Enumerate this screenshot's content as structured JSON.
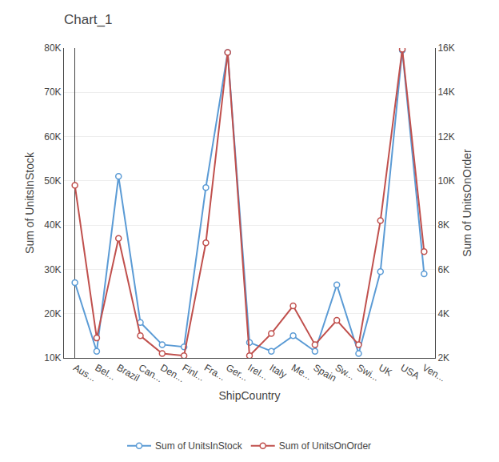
{
  "chart_data": {
    "type": "line",
    "title": "Chart_1",
    "xlabel": "ShipCountry",
    "ylabel": "Sum of UnitsInStock",
    "y2label": "Sum of UnitsOnOrder",
    "categories": [
      "Aus...",
      "Bel...",
      "Brazil",
      "Can...",
      "Den...",
      "Finl...",
      "Fra...",
      "Ger...",
      "Irel...",
      "Italy",
      "Me...",
      "Spain",
      "Sw...",
      "Swi...",
      "UK",
      "USA",
      "Ven..."
    ],
    "series": [
      {
        "name": "Sum of UnitsInStock",
        "color": "#5b9bd5",
        "marker": "circle",
        "values": [
          27000,
          11500,
          51000,
          18000,
          13000,
          12500,
          48500,
          79000,
          13500,
          11500,
          15000,
          11500,
          26500,
          11000,
          29500,
          79500,
          29000
        ]
      },
      {
        "name": "Sum of UnitsOnOrder",
        "color": "#c0504d",
        "marker": "circle",
        "axis": "y2",
        "values": [
          9800,
          2900,
          7400,
          3000,
          2200,
          2100,
          7200,
          15800,
          2100,
          3100,
          4350,
          2600,
          3700,
          2600,
          8200,
          15950,
          6800
        ]
      }
    ],
    "ylim": [
      10000,
      80000
    ],
    "yticks": [
      {
        "value": 10000,
        "label": "10K"
      },
      {
        "value": 20000,
        "label": "20K"
      },
      {
        "value": 30000,
        "label": "30K"
      },
      {
        "value": 40000,
        "label": "40K"
      },
      {
        "value": 50000,
        "label": "50K"
      },
      {
        "value": 60000,
        "label": "60K"
      },
      {
        "value": 70000,
        "label": "70K"
      },
      {
        "value": 80000,
        "label": "80K"
      }
    ],
    "y2lim": [
      2000,
      16000
    ],
    "y2ticks": [
      {
        "value": 2000,
        "label": "2K"
      },
      {
        "value": 4000,
        "label": "4K"
      },
      {
        "value": 6000,
        "label": "6K"
      },
      {
        "value": 8000,
        "label": "8K"
      },
      {
        "value": 10000,
        "label": "10K"
      },
      {
        "value": 12000,
        "label": "12K"
      },
      {
        "value": 14000,
        "label": "14K"
      },
      {
        "value": 16000,
        "label": "16K"
      }
    ],
    "grid": true,
    "legend": "bottom"
  }
}
